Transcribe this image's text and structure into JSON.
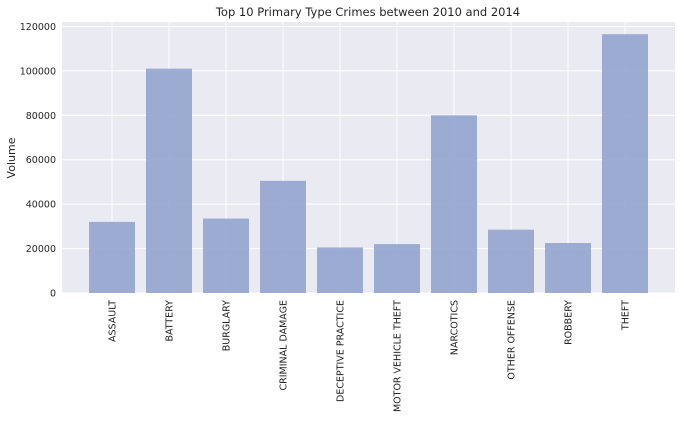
{
  "chart_data": {
    "type": "bar",
    "title": "Top 10 Primary Type Crimes between 2010 and 2014",
    "xlabel": "",
    "ylabel": "Volume",
    "categories": [
      "ASSAULT",
      "BATTERY",
      "BURGLARY",
      "CRIMINAL DAMAGE",
      "DECEPTIVE PRACTICE",
      "MOTOR VEHICLE THEFT",
      "NARCOTICS",
      "OTHER OFFENSE",
      "ROBBERY",
      "THEFT"
    ],
    "values": [
      32000,
      101000,
      33500,
      50500,
      20500,
      22000,
      80000,
      28500,
      22500,
      116500
    ],
    "ylim": [
      0,
      122000
    ],
    "yticks": [
      0,
      20000,
      40000,
      60000,
      80000,
      100000,
      120000
    ],
    "ytick_labels": [
      "0",
      "20000",
      "40000",
      "60000",
      "80000",
      "100000",
      "120000"
    ],
    "grid": true,
    "colors": {
      "bar": "#8da0cb",
      "background": "#eaeaf2",
      "grid": "#ffffff"
    }
  }
}
